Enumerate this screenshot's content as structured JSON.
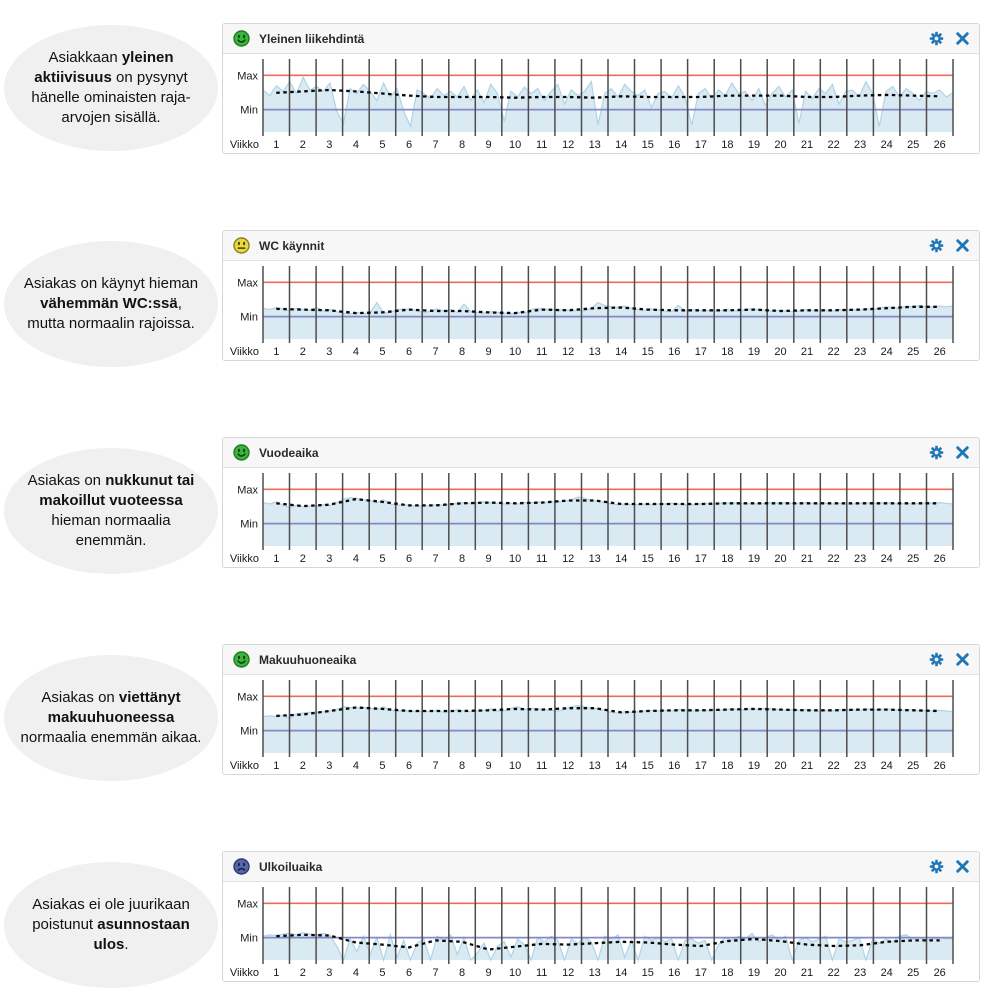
{
  "colors": {
    "max_line": "#f0685c",
    "min_line": "#8289c4",
    "area_fill": "#d9eaf3",
    "area_stroke": "#b0d4e5",
    "trend": "#0a0a0a",
    "gridline": "#4d4d4d",
    "icon_blue": "#1f77b8",
    "header_bg": "#f7f7f7",
    "panel_border": "#d6d6d6",
    "bubble_bg": "#f0f0f0"
  },
  "icons": {
    "settings": "gear-icon",
    "close": "close-icon",
    "mood_happy": "mood-happy-icon",
    "mood_neutral": "mood-neutral-icon",
    "mood_sad": "mood-sad-icon"
  },
  "moods": {
    "happy": {
      "fill": "#3cb33c",
      "stroke": "#1d7d1d",
      "feature": "#0f3a0f"
    },
    "neutral": {
      "fill": "#e8da3a",
      "stroke": "#8a7f22",
      "feature": "#3f3a10"
    },
    "sad": {
      "fill": "#5766a8",
      "stroke": "#2c3a72",
      "feature": "#141f4a"
    }
  },
  "panels": [
    {
      "mood": "happy",
      "bubble": [
        {
          "t": "Asiakkaan ",
          "b": false
        },
        {
          "t": "yleinen aktiivisuus",
          "b": true
        },
        {
          "t": " on pysynyt hänelle ominaisten raja-arvojen sisällä.",
          "b": false
        }
      ]
    },
    {
      "mood": "neutral",
      "bubble": [
        {
          "t": "Asiakas on käynyt hieman ",
          "b": false
        },
        {
          "t": "vähemmän WC:ssä",
          "b": true
        },
        {
          "t": ", mutta normaalin rajoissa.",
          "b": false
        }
      ]
    },
    {
      "mood": "happy",
      "bubble": [
        {
          "t": "Asiakas on ",
          "b": false
        },
        {
          "t": "nukkunut tai makoillut vuoteessa",
          "b": true
        },
        {
          "t": " hieman normaalia enemmän.",
          "b": false
        }
      ]
    },
    {
      "mood": "happy",
      "bubble": [
        {
          "t": "Asiakas on ",
          "b": false
        },
        {
          "t": "viettänyt makuuhuoneessa",
          "b": true
        },
        {
          "t": " normaalia enemmän aikaa.",
          "b": false
        }
      ]
    },
    {
      "mood": "sad",
      "bubble": [
        {
          "t": "Asiakas ei ole juurikaan poistunut ",
          "b": false
        },
        {
          "t": "asunnostaan ulos",
          "b": true
        },
        {
          "t": ".",
          "b": false
        }
      ]
    }
  ],
  "chart_data": [
    {
      "type": "area",
      "title": "Yleinen liikehdintä",
      "xlabel": "Viikko",
      "weeks": [
        1,
        2,
        3,
        4,
        5,
        6,
        7,
        8,
        9,
        10,
        11,
        12,
        13,
        14,
        15,
        16,
        17,
        18,
        19,
        20,
        21,
        22,
        23,
        24,
        25,
        26
      ],
      "ylim": [
        0,
        100
      ],
      "thresholds": {
        "max_label": "Max",
        "min_label": "Min",
        "max_value": 81,
        "min_value": 32
      },
      "series": [
        {
          "name": "activity",
          "points_per_week": 4,
          "values": [
            60,
            52,
            66,
            58,
            72,
            55,
            78,
            60,
            65,
            58,
            70,
            30,
            12,
            62,
            55,
            68,
            58,
            45,
            70,
            50,
            62,
            30,
            8,
            60,
            55,
            48,
            62,
            52,
            58,
            50,
            65,
            45,
            60,
            42,
            68,
            55,
            15,
            58,
            50,
            64,
            55,
            62,
            45,
            58,
            68,
            40,
            60,
            52,
            58,
            72,
            10,
            55,
            62,
            50,
            68,
            58,
            52,
            60,
            35,
            55,
            58,
            48,
            66,
            50,
            10,
            55,
            62,
            48,
            60,
            52,
            70,
            55,
            58,
            45,
            62,
            38,
            55,
            65,
            50,
            60,
            12,
            58,
            48,
            62,
            55,
            68,
            40,
            58,
            60,
            50,
            72,
            55,
            8,
            58,
            65,
            50,
            62,
            55,
            45,
            58,
            55,
            60,
            50,
            56
          ]
        },
        {
          "name": "weekly-trend",
          "style": "dotted",
          "values": [
            56,
            58,
            60,
            58,
            55,
            52,
            50,
            50,
            50,
            49,
            50,
            50,
            49,
            51,
            50,
            50,
            50,
            52,
            52,
            52,
            50,
            50,
            52,
            53,
            52,
            51
          ]
        }
      ]
    },
    {
      "type": "area",
      "title": "WC käynnit",
      "xlabel": "Viikko",
      "weeks": [
        1,
        2,
        3,
        4,
        5,
        6,
        7,
        8,
        9,
        10,
        11,
        12,
        13,
        14,
        15,
        16,
        17,
        18,
        19,
        20,
        21,
        22,
        23,
        24,
        25,
        26
      ],
      "ylim": [
        0,
        100
      ],
      "thresholds": {
        "max_label": "Max",
        "min_label": "Min",
        "max_value": 81,
        "min_value": 32
      },
      "series": [
        {
          "name": "wc-visits",
          "points_per_week": 4,
          "values": [
            44,
            42,
            45,
            43,
            40,
            44,
            42,
            41,
            45,
            40,
            42,
            39,
            37,
            36,
            38,
            36,
            38,
            52,
            37,
            38,
            42,
            43,
            42,
            41,
            37,
            40,
            43,
            40,
            42,
            38,
            50,
            39,
            38,
            37,
            39,
            38,
            37,
            36,
            38,
            37,
            42,
            44,
            42,
            43,
            41,
            42,
            40,
            41,
            40,
            44,
            52,
            48,
            46,
            45,
            47,
            44,
            42,
            41,
            43,
            42,
            40,
            39,
            48,
            40,
            42,
            41,
            40,
            41,
            40,
            42,
            41,
            40,
            42,
            43,
            42,
            41,
            40,
            41,
            40,
            39,
            40,
            42,
            41,
            40,
            41,
            40,
            42,
            41,
            42,
            41,
            43,
            42,
            44,
            46,
            45,
            44,
            47,
            46,
            48,
            46,
            46,
            47,
            46,
            47
          ]
        },
        {
          "name": "weekly-trend",
          "style": "dotted",
          "values": [
            43,
            42,
            41,
            37,
            38,
            42,
            40,
            40,
            38,
            37,
            42,
            41,
            44,
            45,
            42,
            41,
            41,
            41,
            42,
            40,
            41,
            41,
            42,
            44,
            46,
            46
          ]
        }
      ]
    },
    {
      "type": "area",
      "title": "Vuodeaika",
      "xlabel": "Viikko",
      "weeks": [
        1,
        2,
        3,
        4,
        5,
        6,
        7,
        8,
        9,
        10,
        11,
        12,
        13,
        14,
        15,
        16,
        17,
        18,
        19,
        20,
        21,
        22,
        23,
        24,
        25,
        26
      ],
      "ylim": [
        0,
        100
      ],
      "thresholds": {
        "max_label": "Max",
        "min_label": "Min",
        "max_value": 81,
        "min_value": 32
      },
      "series": [
        {
          "name": "bed-time",
          "points_per_week": 4,
          "values": [
            62,
            60,
            63,
            58,
            55,
            58,
            56,
            57,
            57,
            59,
            58,
            62,
            67,
            69,
            68,
            66,
            65,
            62,
            66,
            60,
            58,
            59,
            58,
            57,
            57,
            58,
            59,
            58,
            60,
            61,
            62,
            61,
            62,
            63,
            62,
            61,
            60,
            61,
            60,
            62,
            62,
            63,
            62,
            63,
            63,
            64,
            66,
            70,
            68,
            65,
            64,
            62,
            60,
            59,
            60,
            59,
            59,
            60,
            59,
            60,
            60,
            61,
            60,
            59,
            59,
            60,
            61,
            60,
            61,
            62,
            61,
            62,
            60,
            61,
            60,
            61,
            62,
            61,
            62,
            61,
            61,
            62,
            61,
            60,
            61,
            60,
            61,
            60,
            60,
            61,
            62,
            61,
            61,
            62,
            61,
            60,
            61,
            60,
            61,
            62,
            61,
            62,
            61,
            60
          ]
        },
        {
          "name": "weekly-trend",
          "style": "dotted",
          "values": [
            61,
            57,
            59,
            67,
            63,
            58,
            58,
            61,
            62,
            61,
            62,
            65,
            65,
            60,
            60,
            60,
            60,
            61,
            61,
            61,
            61,
            61,
            61,
            61,
            61,
            61
          ]
        }
      ]
    },
    {
      "type": "area",
      "title": "Makuuhuoneaika",
      "xlabel": "Viikko",
      "weeks": [
        1,
        2,
        3,
        4,
        5,
        6,
        7,
        8,
        9,
        10,
        11,
        12,
        13,
        14,
        15,
        16,
        17,
        18,
        19,
        20,
        21,
        22,
        23,
        24,
        25,
        26
      ],
      "ylim": [
        0,
        100
      ],
      "thresholds": {
        "max_label": "Max",
        "min_label": "Min",
        "max_value": 81,
        "min_value": 32
      },
      "series": [
        {
          "name": "bedroom-time",
          "points_per_week": 4,
          "values": [
            52,
            53,
            52,
            54,
            50,
            56,
            57,
            58,
            58,
            59,
            60,
            62,
            66,
            65,
            64,
            65,
            64,
            62,
            66,
            61,
            60,
            61,
            60,
            59,
            60,
            59,
            61,
            58,
            59,
            62,
            60,
            59,
            60,
            61,
            63,
            60,
            60,
            64,
            66,
            62,
            64,
            63,
            62,
            61,
            60,
            62,
            66,
            68,
            66,
            64,
            63,
            61,
            58,
            57,
            59,
            58,
            59,
            60,
            61,
            60,
            61,
            60,
            62,
            61,
            60,
            61,
            60,
            62,
            61,
            62,
            63,
            62,
            62,
            63,
            62,
            64,
            63,
            62,
            61,
            62,
            61,
            62,
            61,
            60,
            61,
            60,
            62,
            61,
            62,
            61,
            63,
            62,
            62,
            63,
            62,
            61,
            61,
            62,
            60,
            61,
            60,
            61,
            60,
            59
          ]
        },
        {
          "name": "weekly-trend",
          "style": "dotted",
          "values": [
            53,
            55,
            60,
            65,
            63,
            60,
            60,
            60,
            61,
            63,
            62,
            64,
            64,
            58,
            60,
            61,
            61,
            62,
            63,
            62,
            61,
            61,
            62,
            62,
            61,
            60
          ]
        }
      ]
    },
    {
      "type": "area",
      "title": "Ulkoiluaika",
      "xlabel": "Viikko",
      "weeks": [
        1,
        2,
        3,
        4,
        5,
        6,
        7,
        8,
        9,
        10,
        11,
        12,
        13,
        14,
        15,
        16,
        17,
        18,
        19,
        20,
        21,
        22,
        23,
        24,
        25,
        26
      ],
      "ylim": [
        0,
        100
      ],
      "thresholds": {
        "max_label": "Max",
        "min_label": "Min",
        "max_value": 81,
        "min_value": 32
      },
      "series": [
        {
          "name": "outdoor-time",
          "points_per_week": 4,
          "values": [
            34,
            36,
            35,
            37,
            38,
            36,
            39,
            37,
            36,
            38,
            35,
            20,
            0,
            30,
            12,
            34,
            8,
            32,
            0,
            36,
            4,
            28,
            0,
            24,
            30,
            0,
            34,
            28,
            36,
            8,
            32,
            0,
            10,
            24,
            0,
            20,
            26,
            4,
            30,
            22,
            0,
            32,
            26,
            34,
            28,
            0,
            30,
            24,
            32,
            26,
            0,
            34,
            30,
            36,
            4,
            28,
            0,
            34,
            28,
            32,
            26,
            30,
            0,
            28,
            30,
            24,
            28,
            0,
            22,
            32,
            28,
            34,
            30,
            38,
            26,
            32,
            36,
            28,
            34,
            0,
            28,
            32,
            26,
            30,
            34,
            0,
            30,
            26,
            28,
            32,
            0,
            30,
            24,
            30,
            26,
            34,
            36,
            30,
            32,
            28,
            30,
            32,
            30,
            31
          ]
        },
        {
          "name": "weekly-trend",
          "style": "dotted",
          "values": [
            34,
            36,
            35,
            25,
            22,
            18,
            28,
            26,
            15,
            19,
            23,
            22,
            24,
            26,
            25,
            22,
            20,
            27,
            30,
            27,
            22,
            20,
            21,
            26,
            28,
            28
          ]
        }
      ]
    }
  ]
}
